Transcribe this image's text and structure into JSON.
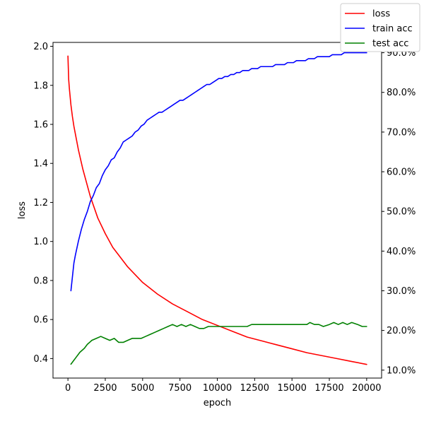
{
  "chart_data": {
    "type": "line",
    "title": "",
    "xlabel": "epoch",
    "ylabel_left": "loss",
    "ylabel_right": "",
    "xlim": [
      -1000,
      21000
    ],
    "xticks": [
      0,
      2500,
      5000,
      7500,
      10000,
      12500,
      15000,
      17500,
      20000
    ],
    "xtick_labels": [
      "0",
      "2500",
      "5000",
      "7500",
      "10000",
      "12500",
      "15000",
      "17500",
      "20000"
    ],
    "ylim_left": [
      0.3,
      2.02
    ],
    "yticks_left": [
      0.4,
      0.6,
      0.8,
      1.0,
      1.2,
      1.4,
      1.6,
      1.8,
      2.0
    ],
    "ytick_labels_left": [
      "0.4",
      "0.6",
      "0.8",
      "1.0",
      "1.2",
      "1.4",
      "1.6",
      "1.8",
      "2.0"
    ],
    "ylim_right": [
      8.0,
      92.6
    ],
    "yticks_right": [
      10,
      20,
      30,
      40,
      50,
      60,
      70,
      80,
      90
    ],
    "ytick_labels_right": [
      "10.0%",
      "20.0%",
      "30.0%",
      "40.0%",
      "50.0%",
      "60.0%",
      "70.0%",
      "80.0%",
      "90.0%"
    ],
    "grid": false,
    "legend_position": "top-right",
    "series": [
      {
        "name": "loss",
        "axis": "left",
        "color": "#ff0000",
        "x": [
          0,
          50,
          100,
          200,
          300,
          400,
          500,
          700,
          1000,
          1500,
          2000,
          2500,
          3000,
          4000,
          5000,
          6000,
          7000,
          8000,
          9000,
          10000,
          11000,
          12000,
          13000,
          14000,
          15000,
          16000,
          17000,
          18000,
          19000,
          20000
        ],
        "y": [
          1.95,
          1.83,
          1.78,
          1.7,
          1.64,
          1.59,
          1.55,
          1.47,
          1.37,
          1.23,
          1.12,
          1.04,
          0.97,
          0.87,
          0.79,
          0.73,
          0.68,
          0.64,
          0.6,
          0.57,
          0.54,
          0.51,
          0.49,
          0.47,
          0.45,
          0.43,
          0.415,
          0.4,
          0.385,
          0.37
        ]
      },
      {
        "name": "train acc",
        "axis": "right",
        "color": "#0000ff",
        "x": [
          200,
          300,
          400,
          500,
          700,
          900,
          1100,
          1300,
          1500,
          1700,
          1900,
          2100,
          2300,
          2500,
          2700,
          2900,
          3100,
          3300,
          3500,
          3700,
          3900,
          4100,
          4300,
          4500,
          4700,
          4900,
          5100,
          5300,
          5500,
          5700,
          5900,
          6100,
          6300,
          6500,
          6700,
          6900,
          7100,
          7300,
          7500,
          7700,
          7900,
          8100,
          8300,
          8500,
          8700,
          8900,
          9100,
          9300,
          9500,
          9700,
          9900,
          10100,
          10300,
          10500,
          10700,
          10900,
          11100,
          11300,
          11500,
          11700,
          11900,
          12100,
          12300,
          12500,
          12700,
          12900,
          13100,
          13300,
          13500,
          13700,
          13900,
          14100,
          14300,
          14500,
          14700,
          14900,
          15100,
          15300,
          15500,
          15700,
          15900,
          16100,
          16300,
          16500,
          16700,
          16900,
          17100,
          17300,
          17500,
          17700,
          17900,
          18100,
          18300,
          18500,
          18700,
          18900,
          19100,
          19300,
          19500,
          19700,
          19900,
          20000
        ],
        "y": [
          30.0,
          33.5,
          37.0,
          39.0,
          42.5,
          45.5,
          48.0,
          50.0,
          52.5,
          54.0,
          56.0,
          57.0,
          59.0,
          60.5,
          61.5,
          63.0,
          63.5,
          65.0,
          66.0,
          67.5,
          68.0,
          68.5,
          69.0,
          70.0,
          70.5,
          71.5,
          72.0,
          73.0,
          73.5,
          74.0,
          74.5,
          75.0,
          75.0,
          75.5,
          76.0,
          76.5,
          77.0,
          77.5,
          78.0,
          78.0,
          78.5,
          79.0,
          79.5,
          80.0,
          80.5,
          81.0,
          81.5,
          82.0,
          82.0,
          82.5,
          83.0,
          83.5,
          83.5,
          84.0,
          84.0,
          84.5,
          84.5,
          85.0,
          85.0,
          85.5,
          85.5,
          85.5,
          86.0,
          86.0,
          86.0,
          86.5,
          86.5,
          86.5,
          86.5,
          86.5,
          87.0,
          87.0,
          87.0,
          87.0,
          87.5,
          87.5,
          87.5,
          88.0,
          88.0,
          88.0,
          88.0,
          88.5,
          88.5,
          88.5,
          89.0,
          89.0,
          89.0,
          89.0,
          89.0,
          89.5,
          89.5,
          89.5,
          89.5,
          90.0,
          90.0,
          90.0,
          90.0,
          90.0,
          90.0,
          90.0,
          90.0,
          90.0
        ]
      },
      {
        "name": "test acc",
        "axis": "right",
        "color": "#008000",
        "x": [
          200,
          500,
          800,
          1100,
          1300,
          1600,
          1900,
          2200,
          2500,
          2800,
          3100,
          3400,
          3700,
          4000,
          4300,
          4600,
          4900,
          5200,
          5500,
          5800,
          6100,
          6400,
          6700,
          7000,
          7300,
          7600,
          7900,
          8200,
          8500,
          8800,
          9100,
          9400,
          9700,
          10000,
          11000,
          12000,
          12300,
          13000,
          14000,
          15000,
          16000,
          16200,
          16500,
          16800,
          17100,
          17500,
          17800,
          18100,
          18400,
          18700,
          19000,
          19400,
          19700,
          20000
        ],
        "y": [
          11.5,
          13.0,
          14.5,
          15.5,
          16.5,
          17.5,
          18.0,
          18.5,
          18.0,
          17.5,
          18.0,
          17.0,
          17.0,
          17.5,
          18.0,
          18.0,
          18.0,
          18.5,
          19.0,
          19.5,
          20.0,
          20.5,
          21.0,
          21.5,
          21.0,
          21.5,
          21.0,
          21.5,
          21.0,
          20.5,
          20.5,
          21.0,
          21.0,
          21.0,
          21.0,
          21.0,
          21.5,
          21.5,
          21.5,
          21.5,
          21.5,
          22.0,
          21.5,
          21.5,
          21.0,
          21.5,
          22.0,
          21.5,
          22.0,
          21.5,
          22.0,
          21.5,
          21.0,
          21.0
        ]
      }
    ]
  }
}
